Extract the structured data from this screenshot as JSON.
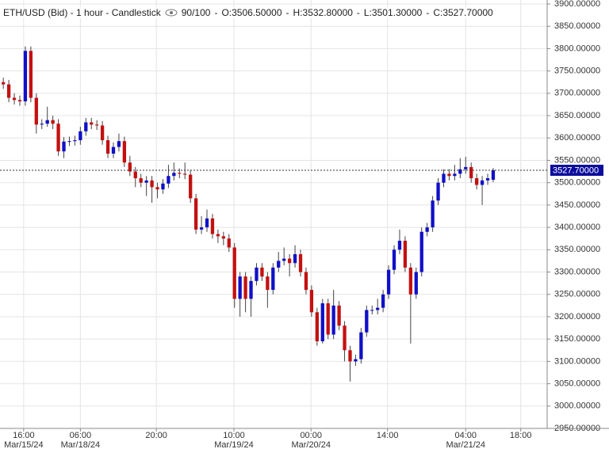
{
  "chart_data": {
    "type": "candlestick",
    "title": "ETH/USD (Bid) - 1 hour - Candlestick",
    "header": {
      "bars": "90/100",
      "open": "O:3506.50000",
      "high": "H:3532.80000",
      "low": "L:3501.30000",
      "close": "C:3527.70000"
    },
    "up_color": "#1010c8",
    "down_color": "#c41010",
    "open": [
      3725,
      3720,
      3690,
      3685,
      3682,
      3795,
      3690,
      3630,
      3632,
      3640,
      3632,
      3570,
      3592,
      3593,
      3595,
      3615,
      3635,
      3630,
      3628,
      3595,
      3565,
      3580,
      3593,
      3545,
      3525,
      3510,
      3500,
      3505,
      3490,
      3485,
      3498,
      3515,
      3522,
      3520,
      3518,
      3465,
      3395,
      3400,
      3420,
      3385,
      3380,
      3375,
      3355,
      3240,
      3290,
      3240,
      3280,
      3310,
      3290,
      3260,
      3310,
      3325,
      3330,
      3320,
      3340,
      3300,
      3260,
      3210,
      3145,
      3230,
      3160,
      3225,
      3180,
      3125,
      3100,
      3105,
      3165,
      3215,
      3215,
      3220,
      3250,
      3305,
      3350,
      3370,
      3310,
      3250,
      3300,
      3390,
      3400,
      3460,
      3500,
      3520,
      3515,
      3520,
      3530,
      3535,
      3510,
      3495,
      3505,
      3506.5
    ],
    "high": [
      3735,
      3730,
      3700,
      3695,
      3805,
      3805,
      3700,
      3642,
      3670,
      3650,
      3642,
      3602,
      3603,
      3605,
      3625,
      3645,
      3645,
      3640,
      3638,
      3605,
      3590,
      3610,
      3603,
      3560,
      3535,
      3520,
      3515,
      3515,
      3500,
      3508,
      3540,
      3545,
      3532,
      3545,
      3528,
      3475,
      3425,
      3440,
      3430,
      3395,
      3390,
      3385,
      3365,
      3300,
      3300,
      3290,
      3320,
      3320,
      3300,
      3320,
      3345,
      3355,
      3340,
      3360,
      3350,
      3310,
      3270,
      3220,
      3240,
      3240,
      3260,
      3235,
      3190,
      3135,
      3115,
      3175,
      3225,
      3225,
      3240,
      3260,
      3315,
      3360,
      3395,
      3380,
      3320,
      3310,
      3400,
      3410,
      3470,
      3510,
      3530,
      3530,
      3540,
      3555,
      3558,
      3545,
      3520,
      3515,
      3520,
      3532.8
    ],
    "low": [
      3710,
      3680,
      3675,
      3672,
      3672,
      3680,
      3610,
      3620,
      3625,
      3620,
      3560,
      3555,
      3582,
      3583,
      3585,
      3605,
      3620,
      3618,
      3585,
      3555,
      3555,
      3570,
      3535,
      3515,
      3490,
      3490,
      3470,
      3455,
      3465,
      3475,
      3488,
      3505,
      3510,
      3508,
      3455,
      3385,
      3385,
      3390,
      3375,
      3365,
      3360,
      3345,
      3220,
      3200,
      3210,
      3200,
      3270,
      3280,
      3220,
      3250,
      3300,
      3315,
      3290,
      3310,
      3290,
      3250,
      3200,
      3135,
      3140,
      3150,
      3150,
      3170,
      3100,
      3055,
      3090,
      3095,
      3155,
      3205,
      3205,
      3210,
      3240,
      3295,
      3340,
      3300,
      3140,
      3240,
      3290,
      3380,
      3390,
      3450,
      3490,
      3505,
      3505,
      3510,
      3520,
      3500,
      3485,
      3450,
      3495,
      3501.3
    ],
    "close": [
      3720,
      3690,
      3685,
      3682,
      3795,
      3690,
      3630,
      3632,
      3640,
      3632,
      3570,
      3592,
      3593,
      3595,
      3615,
      3635,
      3630,
      3628,
      3595,
      3565,
      3580,
      3593,
      3545,
      3525,
      3510,
      3500,
      3505,
      3490,
      3485,
      3498,
      3515,
      3522,
      3520,
      3518,
      3465,
      3395,
      3400,
      3420,
      3385,
      3380,
      3375,
      3355,
      3240,
      3290,
      3240,
      3280,
      3310,
      3290,
      3260,
      3310,
      3325,
      3330,
      3320,
      3340,
      3300,
      3260,
      3210,
      3145,
      3230,
      3160,
      3225,
      3180,
      3125,
      3100,
      3105,
      3165,
      3215,
      3215,
      3220,
      3250,
      3305,
      3350,
      3370,
      3310,
      3250,
      3300,
      3390,
      3400,
      3460,
      3500,
      3520,
      3515,
      3520,
      3530,
      3535,
      3510,
      3495,
      3505,
      3510,
      3527.7
    ],
    "last_price": {
      "value": 3527.7,
      "label": "3527.70000"
    },
    "xlim": [
      -0.6,
      98.8
    ],
    "xticks": [
      {
        "value": 3.7,
        "label": "16:00"
      },
      {
        "value": 14,
        "label": "06:00"
      },
      {
        "value": 27.8,
        "label": "20:00"
      },
      {
        "value": 41.9,
        "label": "10:00"
      },
      {
        "value": 55.9,
        "label": "00:00"
      },
      {
        "value": 69.8,
        "label": "14:00"
      },
      {
        "value": 84,
        "label": "04:00"
      },
      {
        "value": 94,
        "label": "18:00"
      }
    ],
    "xdates": [
      {
        "value": 3.7,
        "label": "Mar/15/24"
      },
      {
        "value": 14,
        "label": "Mar/18/24"
      },
      {
        "value": 41.9,
        "label": "Mar/19/24"
      },
      {
        "value": 55.9,
        "label": "Mar/20/24"
      },
      {
        "value": 84,
        "label": "Mar/21/24"
      }
    ],
    "ylim": [
      2950,
      3900
    ],
    "yticks": [
      {
        "value": 2950,
        "label": "2950.00000"
      },
      {
        "value": 3000,
        "label": "3000.00000"
      },
      {
        "value": 3050,
        "label": "3050.00000"
      },
      {
        "value": 3100,
        "label": "3100.00000"
      },
      {
        "value": 3150,
        "label": "3150.00000"
      },
      {
        "value": 3200,
        "label": "3200.00000"
      },
      {
        "value": 3250,
        "label": "3250.00000"
      },
      {
        "value": 3300,
        "label": "3300.00000"
      },
      {
        "value": 3350,
        "label": "3350.00000"
      },
      {
        "value": 3400,
        "label": "3400.00000"
      },
      {
        "value": 3450,
        "label": "3450.00000"
      },
      {
        "value": 3500,
        "label": "3500.00000"
      },
      {
        "value": 3550,
        "label": "3550.00000"
      },
      {
        "value": 3600,
        "label": "3600.00000"
      },
      {
        "value": 3650,
        "label": "3650.00000"
      },
      {
        "value": 3700,
        "label": "3700.00000"
      },
      {
        "value": 3750,
        "label": "3750.00000"
      },
      {
        "value": 3800,
        "label": "3800.00000"
      },
      {
        "value": 3850,
        "label": "3850.00000"
      },
      {
        "value": 3900,
        "label": "3900.00000"
      }
    ],
    "grid": true
  }
}
